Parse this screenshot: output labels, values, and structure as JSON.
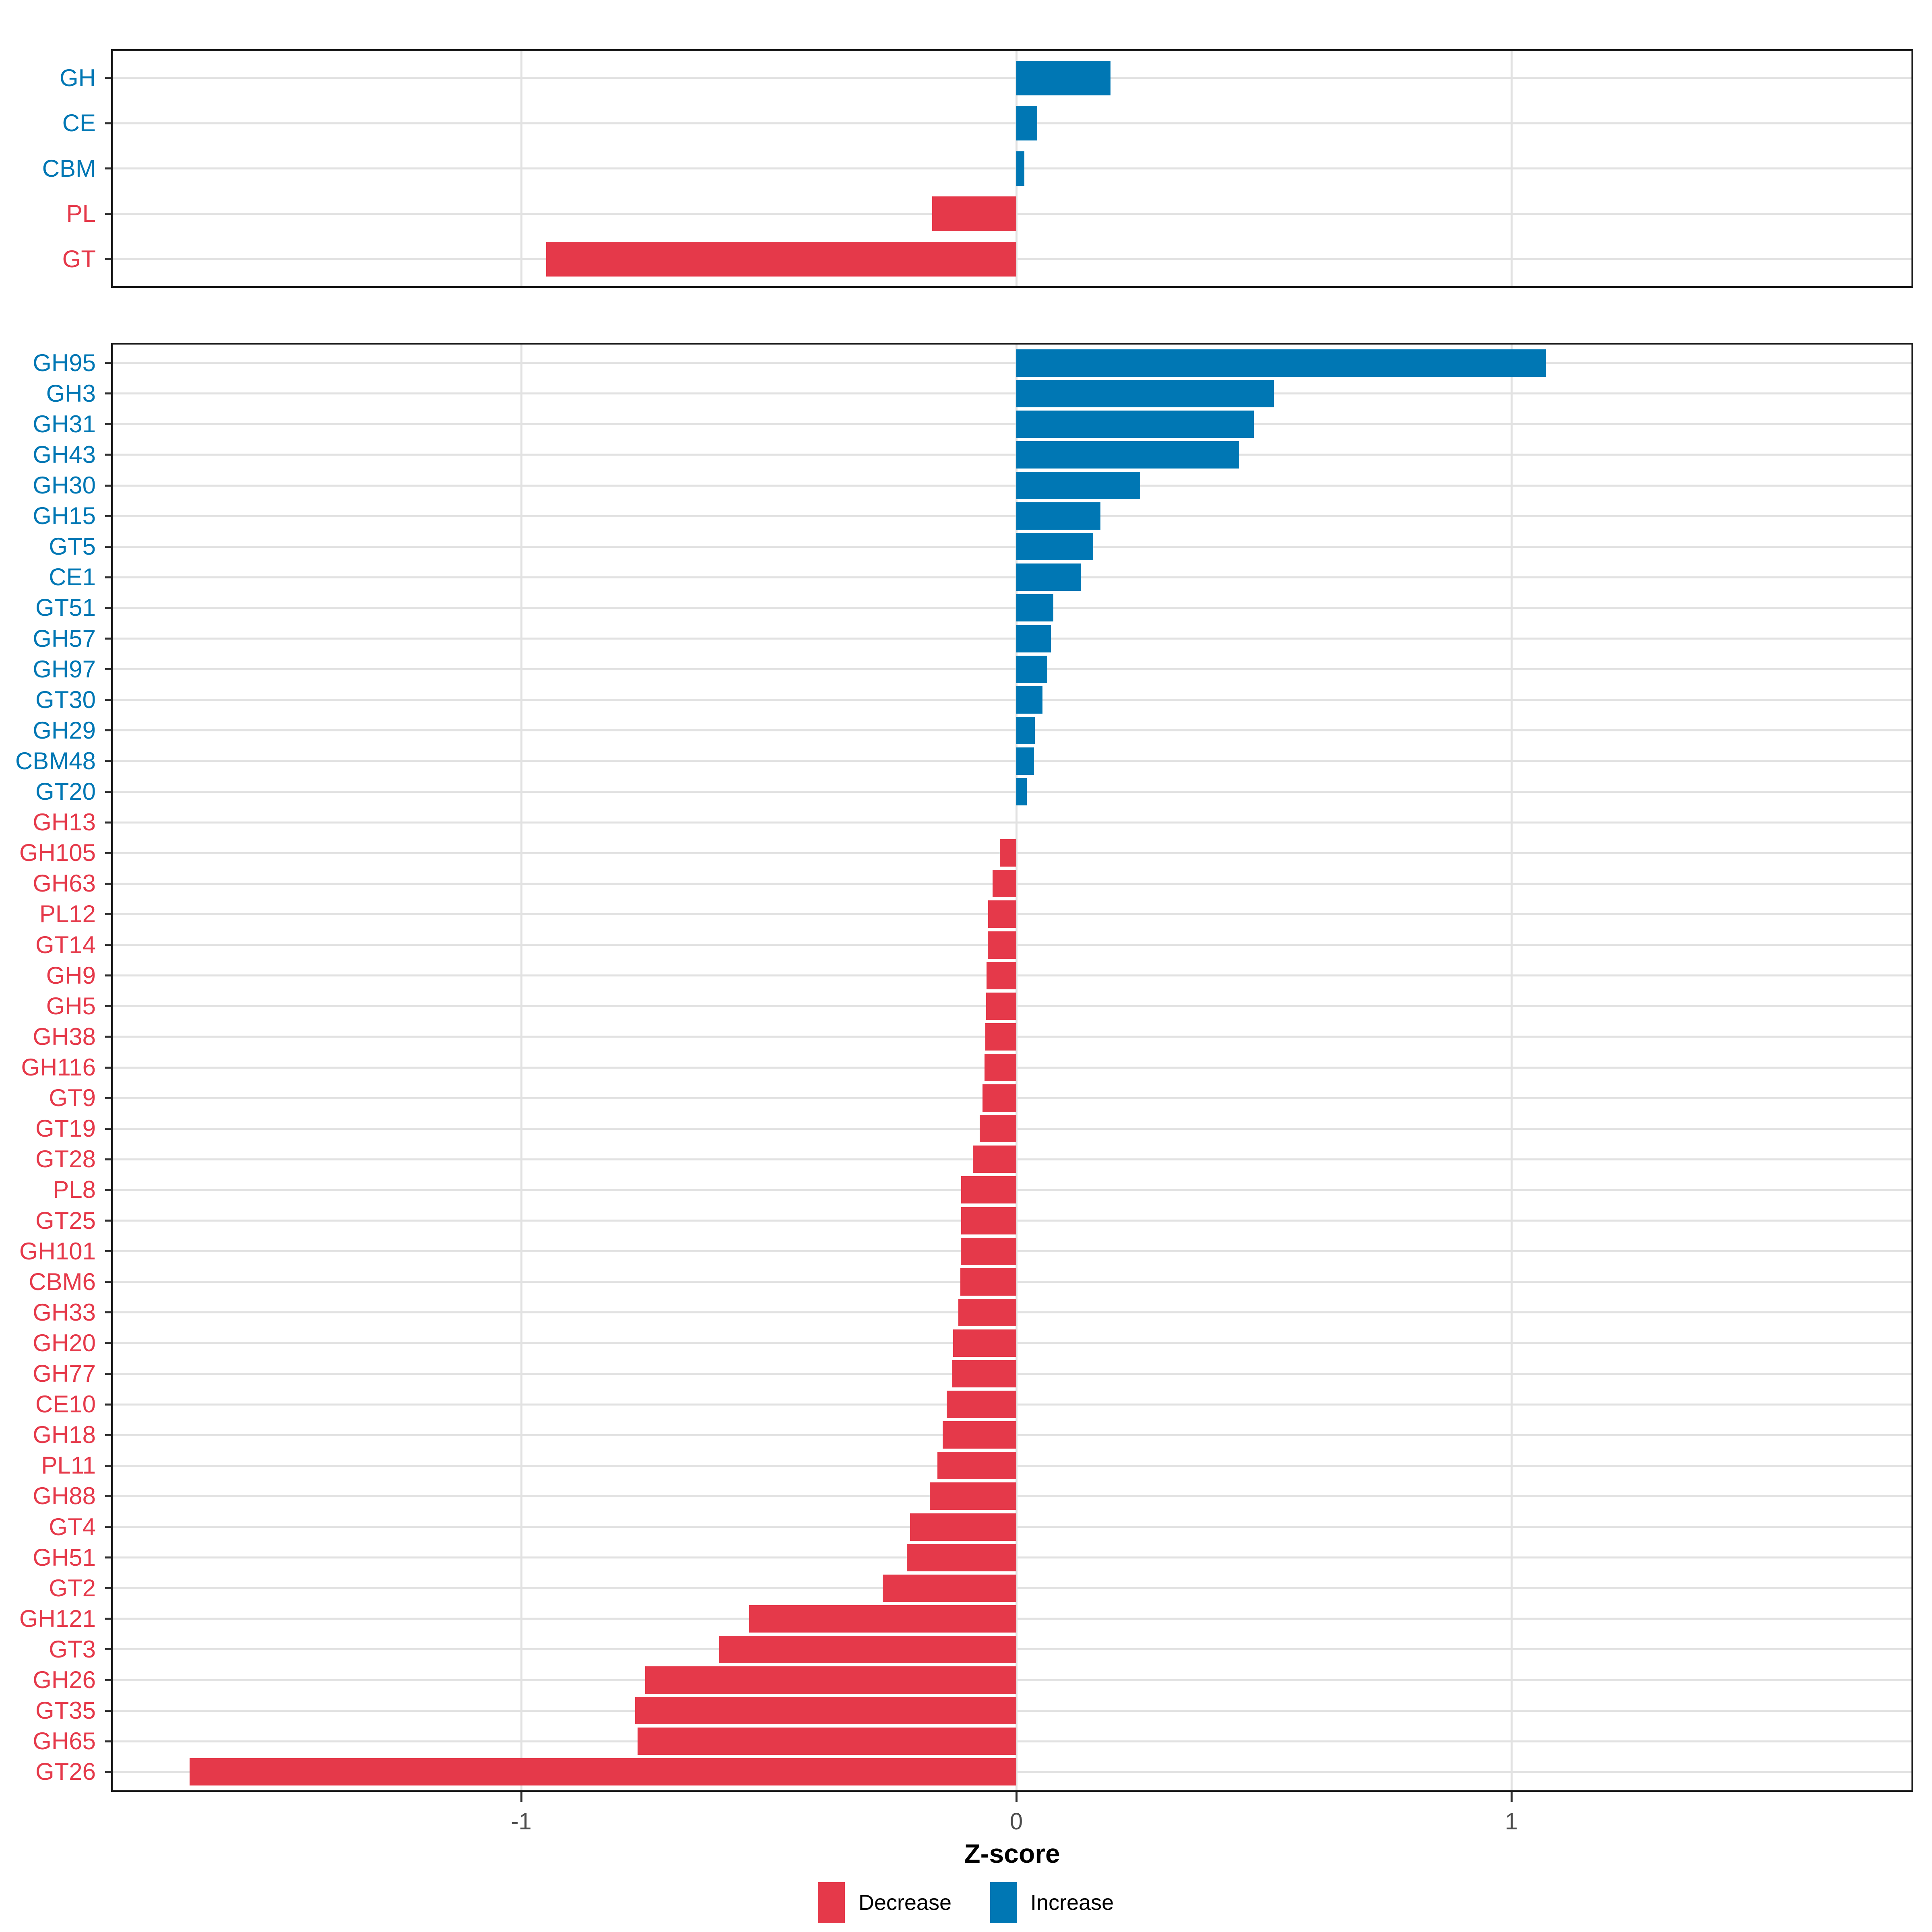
{
  "chart_data": [
    {
      "type": "bar",
      "orientation": "horizontal",
      "panel": "cazyme-class",
      "categories": [
        "GH",
        "CE",
        "CBM",
        "PL",
        "GT"
      ],
      "values": [
        0.19,
        0.042,
        0.016,
        -0.17,
        -0.95
      ],
      "xlim": [
        -1.83,
        1.81
      ],
      "x_ticks": [
        -1,
        0,
        1
      ],
      "grid": true,
      "legend_position": "none"
    },
    {
      "type": "bar",
      "orientation": "horizontal",
      "panel": "cazyme-family",
      "categories": [
        "GH95",
        "GH3",
        "GH31",
        "GH43",
        "GH30",
        "GH15",
        "GT5",
        "CE1",
        "GT51",
        "GH57",
        "GH97",
        "GT30",
        "GH29",
        "CBM48",
        "GT20",
        "GH13",
        "GH105",
        "GH63",
        "PL12",
        "GT14",
        "GH9",
        "GH5",
        "GH38",
        "GH116",
        "GT9",
        "GT19",
        "GT28",
        "PL8",
        "GT25",
        "GH101",
        "CBM6",
        "GH33",
        "GH20",
        "GH77",
        "CE10",
        "GH18",
        "PL11",
        "GH88",
        "GT4",
        "GH51",
        "GT2",
        "GH121",
        "GT3",
        "GH26",
        "GT35",
        "GH65",
        "GT26"
      ],
      "values": [
        1.07,
        0.52,
        0.48,
        0.45,
        0.25,
        0.17,
        0.155,
        0.13,
        0.075,
        0.07,
        0.063,
        0.053,
        0.037,
        0.036,
        0.021,
        0,
        -0.033,
        -0.048,
        -0.057,
        -0.058,
        -0.06,
        -0.061,
        -0.063,
        -0.064,
        -0.068,
        -0.074,
        -0.088,
        -0.111,
        -0.111,
        -0.112,
        -0.113,
        -0.117,
        -0.128,
        -0.13,
        -0.141,
        -0.149,
        -0.159,
        -0.175,
        -0.215,
        -0.221,
        -0.27,
        -0.54,
        -0.6,
        -0.75,
        -0.77,
        -0.765,
        -1.67
      ],
      "xlim": [
        -1.83,
        1.81
      ],
      "x_ticks": [
        -1,
        0,
        1
      ],
      "xlabel": "Z-score",
      "grid": true,
      "legend_position": "bottom"
    }
  ],
  "axis": {
    "xlabel": "Z-score",
    "tick_labels": [
      "-1",
      "0",
      "1"
    ]
  },
  "legend": {
    "items": [
      {
        "label": "Decrease",
        "color": "#e5394a"
      },
      {
        "label": "Increase",
        "color": "#0077b4"
      }
    ]
  },
  "colors": {
    "increase": "#0077b4",
    "decrease": "#e5394a",
    "grid": "#e2e2e2",
    "panel_border": "#1a1a1a",
    "tick": "#333333",
    "tick_label": "#4d4d4d"
  }
}
